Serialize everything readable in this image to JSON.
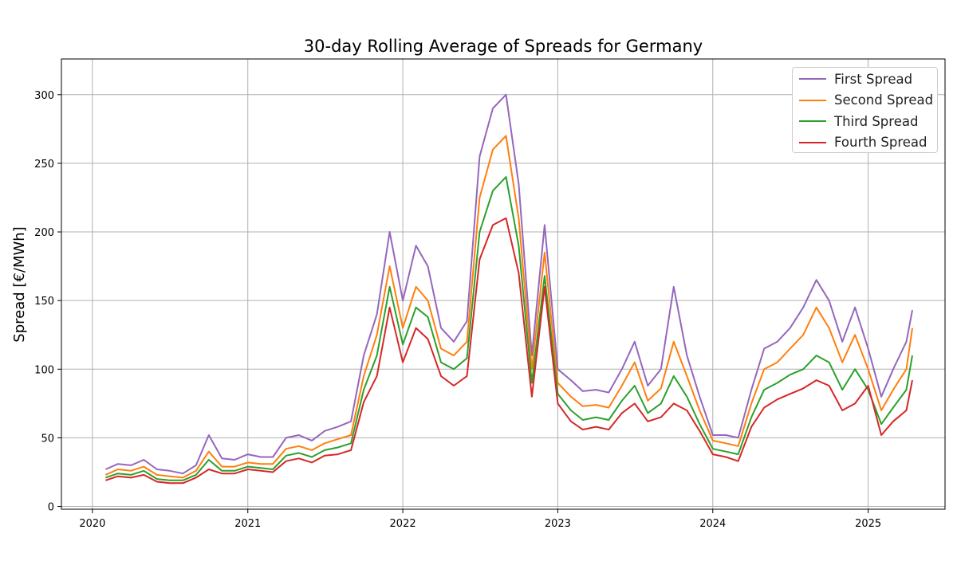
{
  "chart_data": {
    "type": "line",
    "title": "30-day Rolling Average of Spreads for Germany",
    "xlabel": "",
    "ylabel": "Spread [€/MWh]",
    "xlim": [
      "2019-10-20",
      "2025-07-01"
    ],
    "ylim": [
      -2,
      326
    ],
    "x_ticks": [
      "2020",
      "2021",
      "2022",
      "2023",
      "2024",
      "2025"
    ],
    "y_ticks": [
      0,
      50,
      100,
      150,
      200,
      250,
      300
    ],
    "grid": true,
    "legend": "top-right",
    "x": [
      "2020-02-01",
      "2020-03-01",
      "2020-04-01",
      "2020-05-01",
      "2020-06-01",
      "2020-07-01",
      "2020-08-01",
      "2020-09-01",
      "2020-10-01",
      "2020-11-01",
      "2020-12-01",
      "2021-01-01",
      "2021-02-01",
      "2021-03-01",
      "2021-04-01",
      "2021-05-01",
      "2021-06-01",
      "2021-07-01",
      "2021-08-01",
      "2021-09-01",
      "2021-10-01",
      "2021-11-01",
      "2021-12-01",
      "2022-01-01",
      "2022-02-01",
      "2022-03-01",
      "2022-04-01",
      "2022-05-01",
      "2022-06-01",
      "2022-07-01",
      "2022-08-01",
      "2022-09-01",
      "2022-10-01",
      "2022-11-01",
      "2022-12-01",
      "2023-01-01",
      "2023-02-01",
      "2023-03-01",
      "2023-04-01",
      "2023-05-01",
      "2023-06-01",
      "2023-07-01",
      "2023-08-01",
      "2023-09-01",
      "2023-10-01",
      "2023-11-01",
      "2023-12-01",
      "2024-01-01",
      "2024-02-01",
      "2024-03-01",
      "2024-04-01",
      "2024-05-01",
      "2024-06-01",
      "2024-07-01",
      "2024-08-01",
      "2024-09-01",
      "2024-10-01",
      "2024-11-01",
      "2024-12-01",
      "2025-01-01",
      "2025-02-01",
      "2025-03-01",
      "2025-04-01",
      "2025-04-15"
    ],
    "series": [
      {
        "name": "First Spread",
        "color": "#9467bd",
        "values": [
          27,
          31,
          30,
          34,
          27,
          26,
          24,
          30,
          52,
          35,
          34,
          38,
          36,
          36,
          50,
          52,
          48,
          55,
          58,
          62,
          110,
          140,
          200,
          150,
          190,
          175,
          130,
          120,
          135,
          255,
          290,
          300,
          235,
          110,
          205,
          100,
          92,
          84,
          85,
          83,
          100,
          120,
          88,
          100,
          160,
          110,
          80,
          52,
          52,
          50,
          85,
          115,
          120,
          130,
          145,
          165,
          150,
          120,
          145,
          115,
          80,
          100,
          120,
          143
        ]
      },
      {
        "name": "Second Spread",
        "color": "#ff7f0e",
        "values": [
          23,
          27,
          26,
          29,
          23,
          22,
          21,
          26,
          40,
          29,
          29,
          32,
          31,
          31,
          42,
          44,
          41,
          46,
          49,
          52,
          95,
          125,
          175,
          130,
          160,
          150,
          115,
          110,
          120,
          225,
          260,
          270,
          210,
          100,
          185,
          90,
          80,
          73,
          74,
          72,
          88,
          105,
          77,
          86,
          120,
          95,
          70,
          48,
          46,
          44,
          75,
          100,
          105,
          115,
          125,
          145,
          130,
          105,
          125,
          100,
          70,
          85,
          100,
          130
        ]
      },
      {
        "name": "Third Spread",
        "color": "#2ca02c",
        "values": [
          21,
          24,
          23,
          26,
          20,
          19,
          19,
          23,
          34,
          26,
          26,
          29,
          28,
          27,
          37,
          39,
          36,
          41,
          43,
          46,
          85,
          110,
          160,
          118,
          145,
          138,
          105,
          100,
          108,
          200,
          230,
          240,
          190,
          90,
          168,
          82,
          70,
          63,
          65,
          63,
          77,
          88,
          68,
          75,
          95,
          80,
          60,
          42,
          40,
          38,
          65,
          85,
          90,
          96,
          100,
          110,
          105,
          85,
          100,
          85,
          60,
          72,
          85,
          110
        ]
      },
      {
        "name": "Fourth Spread",
        "color": "#d62728",
        "values": [
          19,
          22,
          21,
          23,
          18,
          17,
          17,
          21,
          27,
          24,
          24,
          27,
          26,
          25,
          33,
          35,
          32,
          37,
          38,
          41,
          76,
          95,
          145,
          105,
          130,
          122,
          95,
          88,
          95,
          180,
          205,
          210,
          170,
          80,
          160,
          75,
          62,
          56,
          58,
          56,
          68,
          75,
          62,
          65,
          75,
          70,
          55,
          38,
          36,
          33,
          58,
          72,
          78,
          82,
          86,
          92,
          88,
          70,
          75,
          88,
          52,
          62,
          70,
          92
        ]
      }
    ]
  }
}
